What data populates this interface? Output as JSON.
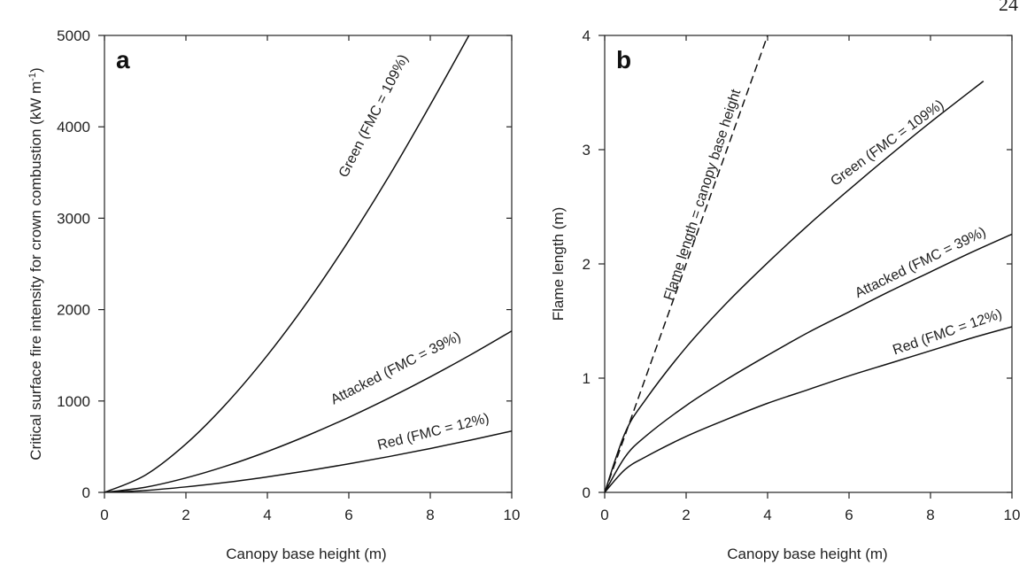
{
  "page_number": "24",
  "chart_data": [
    {
      "type": "line",
      "panel_label": "a",
      "xlabel": "Canopy base height (m)",
      "ylabel": "Critical surface fire intensity for crown combustion (kW m",
      "ylabel_sup": "-1",
      "ylabel_end": ")",
      "xlim": [
        0,
        10
      ],
      "ylim": [
        0,
        5000
      ],
      "x_ticks": [
        "0",
        "2",
        "4",
        "6",
        "8",
        "10"
      ],
      "y_ticks": [
        "0",
        "1000",
        "2000",
        "3000",
        "4000",
        "5000"
      ],
      "grid": false,
      "legend": "none",
      "series": [
        {
          "name": "Green (FMC = 109%)",
          "x": [
            0,
            1,
            2,
            3,
            4,
            5,
            6,
            7,
            8,
            8.95
          ],
          "y": [
            0,
            188,
            530,
            975,
            1500,
            2095,
            2755,
            3470,
            4240,
            5000
          ]
        },
        {
          "name": "Attacked (FMC = 39%)",
          "x": [
            0,
            1,
            2,
            3,
            4,
            5,
            6,
            7,
            8,
            9,
            10
          ],
          "y": [
            0,
            56,
            158,
            290,
            447,
            625,
            821,
            1035,
            1264,
            1508,
            1766
          ]
        },
        {
          "name": "Red (FMC = 12%)",
          "x": [
            0,
            1,
            2,
            3,
            4,
            5,
            6,
            7,
            8,
            9,
            10
          ],
          "y": [
            0,
            21,
            60,
            110,
            170,
            237,
            312,
            393,
            480,
            573,
            671
          ]
        }
      ]
    },
    {
      "type": "line",
      "panel_label": "b",
      "xlabel": "Canopy base height (m)",
      "ylabel": "Flame length (m)",
      "xlim": [
        0,
        10
      ],
      "ylim": [
        0,
        4
      ],
      "x_ticks": [
        "0",
        "2",
        "4",
        "6",
        "8",
        "10"
      ],
      "y_ticks": [
        "0",
        "1",
        "2",
        "3",
        "4"
      ],
      "grid": false,
      "legend": "none",
      "series": [
        {
          "name": "Green (FMC = 109%)",
          "x": [
            0,
            0.5,
            1,
            2,
            3,
            4,
            5,
            6,
            7,
            8,
            9.3
          ],
          "y": [
            0,
            0.52,
            0.81,
            1.27,
            1.66,
            2.01,
            2.34,
            2.65,
            2.95,
            3.24,
            3.6
          ]
        },
        {
          "name": "Attacked (FMC = 39%)",
          "x": [
            0,
            0.5,
            1,
            2,
            3,
            4,
            5,
            6,
            7,
            8,
            9,
            10
          ],
          "y": [
            0,
            0.31,
            0.49,
            0.76,
            0.99,
            1.2,
            1.4,
            1.58,
            1.76,
            1.93,
            2.1,
            2.26
          ]
        },
        {
          "name": "Red (FMC = 12%)",
          "x": [
            0,
            0.5,
            1,
            2,
            3,
            4,
            5,
            6,
            7,
            8,
            9,
            10
          ],
          "y": [
            0,
            0.2,
            0.31,
            0.49,
            0.64,
            0.78,
            0.9,
            1.02,
            1.13,
            1.24,
            1.35,
            1.45
          ]
        },
        {
          "name": "Flame length = canopy base height",
          "style": "dashed",
          "x": [
            0,
            4.0
          ],
          "y": [
            0,
            4.0
          ]
        }
      ]
    }
  ]
}
